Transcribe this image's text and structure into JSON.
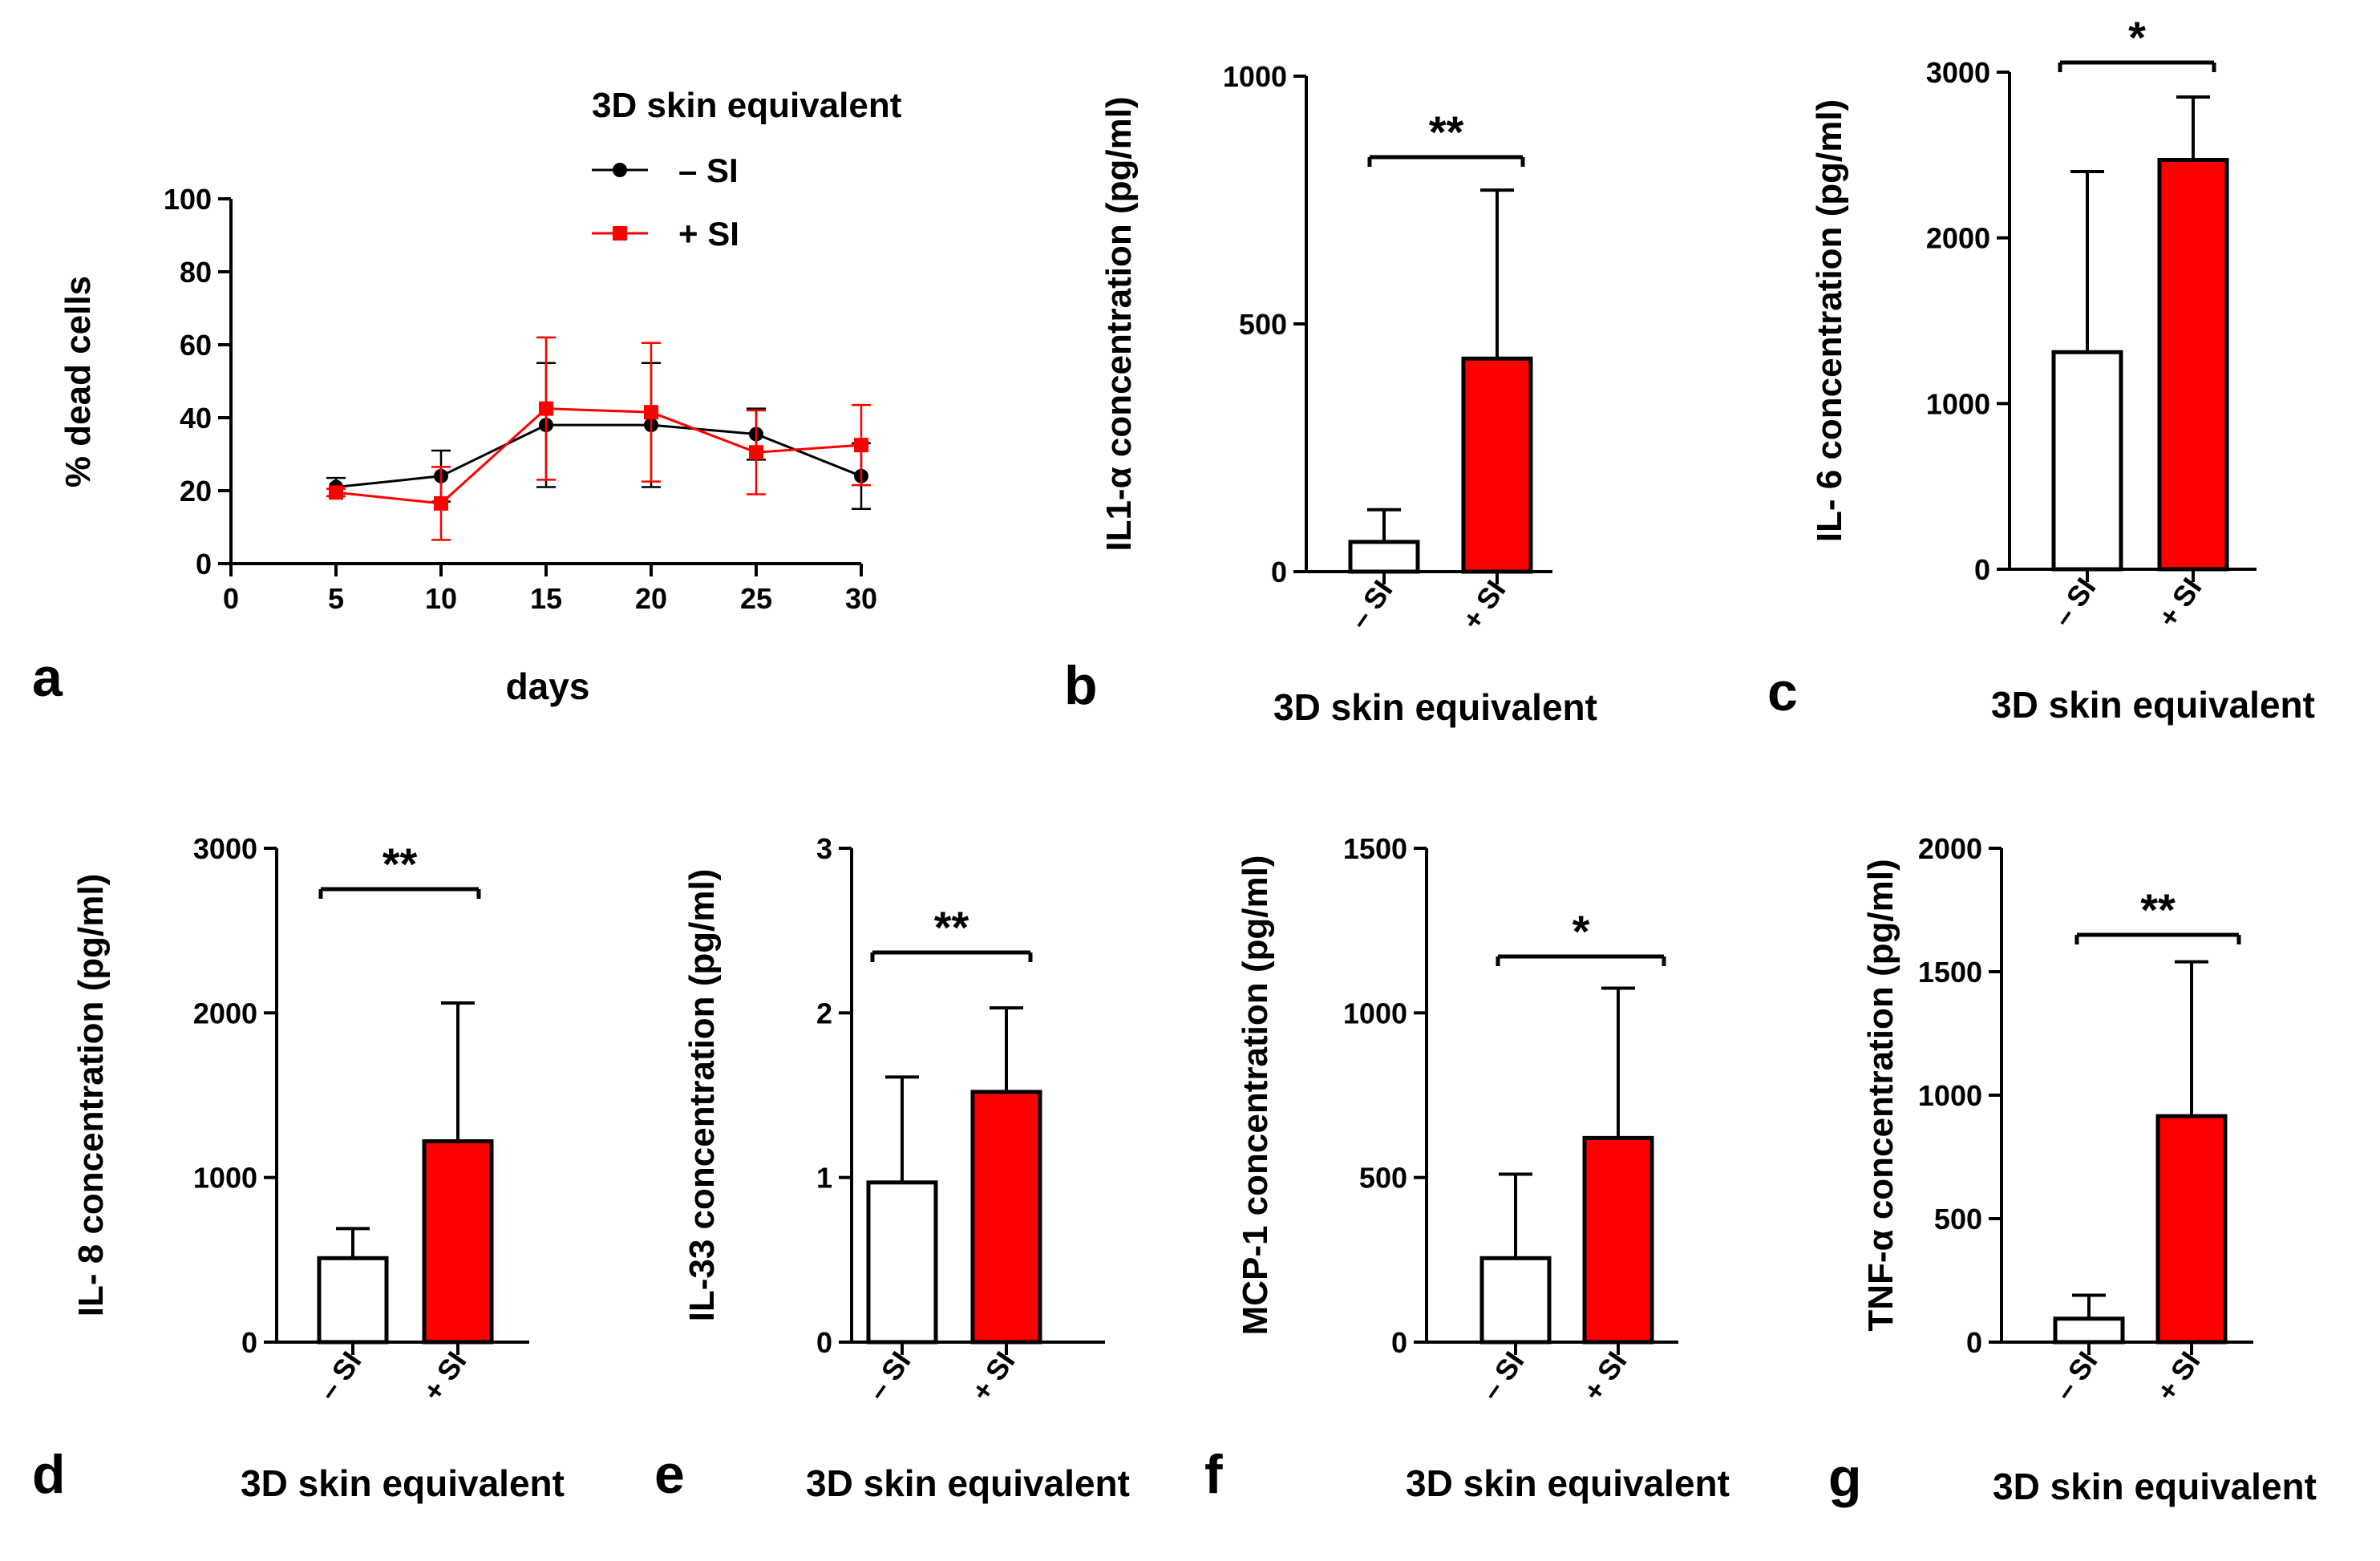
{
  "figure": {
    "colors": {
      "control": "#ffffff",
      "treated": "#ff0000",
      "axis": "#000000",
      "line_control": "#000000",
      "line_treated": "#ff0000"
    }
  },
  "chart_data": [
    {
      "id": "a",
      "panel_label": "a",
      "type": "line",
      "title": "",
      "xlabel": "days",
      "ylabel": "% dead cells",
      "xlim": [
        0,
        30
      ],
      "ylim": [
        0,
        100
      ],
      "x_ticks": [
        0,
        5,
        10,
        15,
        20,
        25,
        30
      ],
      "y_ticks": [
        0,
        20,
        40,
        60,
        80,
        100
      ],
      "legend": {
        "title": "3D skin equivalent",
        "position": "top-right"
      },
      "series": [
        {
          "name": "– SI",
          "color": "#000000",
          "marker": "circle",
          "x": [
            5,
            10,
            15,
            20,
            25,
            30
          ],
          "y": [
            21,
            24,
            38,
            38,
            35.5,
            24
          ],
          "err": [
            2.5,
            7,
            17,
            17,
            7,
            9
          ]
        },
        {
          "name": "+ SI",
          "color": "#ff0000",
          "marker": "square",
          "x": [
            5,
            10,
            15,
            20,
            25,
            30
          ],
          "y": [
            19.5,
            16.5,
            42.5,
            41.5,
            30.5,
            32.5
          ],
          "err": [
            1,
            10,
            19.5,
            19,
            11.5,
            11
          ]
        }
      ]
    },
    {
      "id": "b",
      "panel_label": "b",
      "type": "bar",
      "ylabel": "IL1-α concentration (pg/ml)",
      "xlabel": "3D skin equivalent",
      "categories": [
        "– SI",
        "+ SI"
      ],
      "values": [
        60,
        430
      ],
      "err": [
        65,
        340
      ],
      "ylim": [
        0,
        1000
      ],
      "y_ticks": [
        0,
        500,
        1000
      ],
      "y_tick_labels": [
        "0",
        "500",
        "1000"
      ],
      "significance": "**"
    },
    {
      "id": "c",
      "panel_label": "c",
      "type": "bar",
      "ylabel": "IL- 6 concentration (pg/ml)",
      "xlabel": "3D skin equivalent",
      "categories": [
        "– SI",
        "+ SI"
      ],
      "values": [
        1310,
        2470
      ],
      "err": [
        1090,
        380
      ],
      "ylim": [
        0,
        3000
      ],
      "y_ticks": [
        0,
        1000,
        2000,
        3000
      ],
      "y_tick_labels": [
        "0",
        "1000",
        "2000",
        "3000"
      ],
      "significance": "*"
    },
    {
      "id": "d",
      "panel_label": "d",
      "type": "bar",
      "ylabel": "IL- 8 concentration (pg/ml)",
      "xlabel": "3D skin equivalent",
      "categories": [
        "– SI",
        "+ SI"
      ],
      "values": [
        510,
        1220
      ],
      "err": [
        180,
        840
      ],
      "ylim": [
        0,
        3000
      ],
      "y_ticks": [
        0,
        1000,
        2000,
        3000
      ],
      "y_tick_labels": [
        "0",
        "1000",
        "2000",
        "3000"
      ],
      "significance": "**"
    },
    {
      "id": "e",
      "panel_label": "e",
      "type": "bar",
      "ylabel": "IL-33 concentration (pg/ml)",
      "xlabel": "3D skin equivalent",
      "categories": [
        "– SI",
        "+ SI"
      ],
      "values": [
        0.97,
        1.52
      ],
      "err": [
        0.64,
        0.51
      ],
      "ylim": [
        0,
        3
      ],
      "y_ticks": [
        0,
        1,
        2,
        3
      ],
      "y_tick_labels": [
        "0",
        "1",
        "2",
        "3"
      ],
      "significance": "**"
    },
    {
      "id": "f",
      "panel_label": "f",
      "type": "bar",
      "ylabel": "MCP-1 concentration (pg/ml)",
      "xlabel": "3D skin equivalent",
      "categories": [
        "– SI",
        "+ SI"
      ],
      "values": [
        255,
        620
      ],
      "err": [
        255,
        455
      ],
      "ylim": [
        0,
        1500
      ],
      "y_ticks": [
        0,
        500,
        1000,
        1500
      ],
      "y_tick_labels": [
        "0",
        "500",
        "1000",
        "1500"
      ],
      "significance": "*"
    },
    {
      "id": "g",
      "panel_label": "g",
      "type": "bar",
      "ylabel": "TNF-α concentration (pg/ml)",
      "xlabel": "3D skin equivalent",
      "categories": [
        "– SI",
        "+ SI"
      ],
      "values": [
        95,
        915
      ],
      "err": [
        95,
        625
      ],
      "ylim": [
        0,
        2000
      ],
      "y_ticks": [
        0,
        500,
        1000,
        1500,
        2000
      ],
      "y_tick_labels": [
        "0",
        "500",
        "1000",
        "1500",
        "2000"
      ],
      "significance": "**"
    }
  ]
}
